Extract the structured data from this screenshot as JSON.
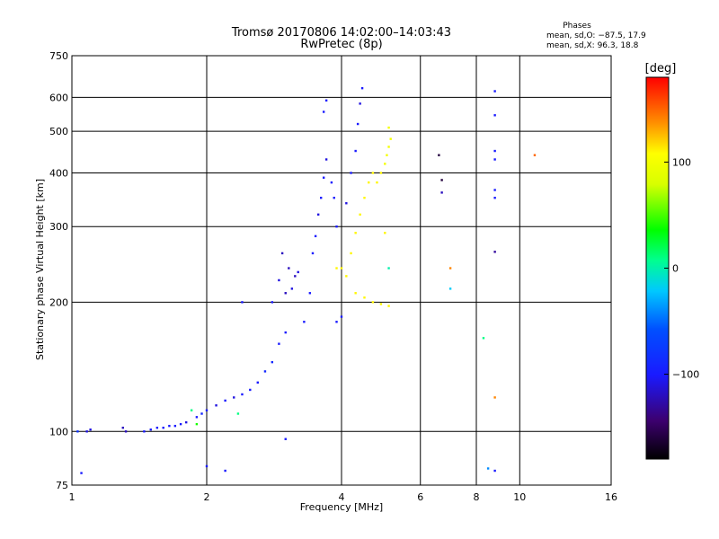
{
  "chart_data": {
    "type": "scatter",
    "title": "Tromsø 20170806 14:02:00–14:03:43",
    "subtitle": "RwPretec (8p)",
    "xlabel": "Frequency [MHz]",
    "ylabel": "Stationary phase Virtual Height [km]",
    "x_scale": "log",
    "y_scale": "log",
    "xlim": [
      1,
      16
    ],
    "ylim": [
      75,
      750
    ],
    "x_ticks": [
      1,
      2,
      4,
      6,
      8,
      10,
      16
    ],
    "x_tick_labels": [
      "1",
      "2",
      "4",
      "6",
      "8",
      "10",
      "16"
    ],
    "y_ticks": [
      75,
      100,
      200,
      300,
      400,
      500,
      600,
      750
    ],
    "y_tick_labels": [
      "75",
      "100",
      "200",
      "300",
      "400",
      "500",
      "600",
      "750"
    ],
    "grid": true,
    "stats": {
      "heading": "Phases",
      "line1": "mean, sd,O: −87.5, 17.9",
      "line2": "mean, sd,X:  96.3, 18.8"
    },
    "colorbar": {
      "label": "[deg]",
      "range": [
        -180,
        180
      ],
      "ticks": [
        100,
        0,
        -100
      ],
      "tick_labels": [
        "100",
        "0",
        "−100"
      ],
      "colormap": "rainbow"
    },
    "series": [
      {
        "points": [
          [
            1.03,
            100,
            -80
          ],
          [
            1.08,
            100,
            -110
          ],
          [
            1.1,
            101,
            -110
          ],
          [
            1.3,
            102,
            -120
          ],
          [
            1.32,
            100,
            -120
          ],
          [
            1.45,
            100,
            -100
          ],
          [
            1.5,
            101,
            -100
          ],
          [
            1.55,
            102,
            -100
          ],
          [
            1.6,
            102,
            -100
          ],
          [
            1.65,
            103,
            -100
          ],
          [
            1.7,
            103,
            -100
          ],
          [
            1.75,
            104,
            -100
          ],
          [
            1.8,
            105,
            -110
          ],
          [
            1.9,
            108,
            -100
          ],
          [
            1.95,
            110,
            -90
          ],
          [
            2.0,
            112,
            -100
          ],
          [
            2.1,
            115,
            -110
          ],
          [
            2.2,
            118,
            -100
          ],
          [
            2.3,
            120,
            -110
          ],
          [
            2.4,
            122,
            -100
          ],
          [
            2.5,
            125,
            -100
          ],
          [
            2.6,
            130,
            -100
          ],
          [
            2.7,
            138,
            -90
          ],
          [
            2.8,
            145,
            -90
          ],
          [
            2.9,
            160,
            -100
          ],
          [
            3.0,
            170,
            -100
          ],
          [
            2.8,
            200,
            -100
          ],
          [
            2.9,
            225,
            -110
          ],
          [
            2.95,
            260,
            -120
          ],
          [
            3.0,
            210,
            -120
          ],
          [
            3.05,
            240,
            -120
          ],
          [
            3.1,
            215,
            -110
          ],
          [
            3.15,
            230,
            -120
          ],
          [
            3.2,
            235,
            -110
          ],
          [
            3.3,
            180,
            -100
          ],
          [
            3.4,
            210,
            -100
          ],
          [
            3.45,
            260,
            -100
          ],
          [
            3.5,
            285,
            -100
          ],
          [
            3.55,
            320,
            -110
          ],
          [
            3.6,
            350,
            -100
          ],
          [
            3.65,
            390,
            -100
          ],
          [
            3.7,
            430,
            -110
          ],
          [
            3.8,
            380,
            -100
          ],
          [
            3.85,
            350,
            -100
          ],
          [
            3.9,
            300,
            -100
          ],
          [
            4.0,
            185,
            -100
          ],
          [
            3.9,
            180,
            -100
          ],
          [
            4.1,
            340,
            -110
          ],
          [
            4.2,
            400,
            -100
          ],
          [
            4.3,
            450,
            -100
          ],
          [
            4.35,
            520,
            -100
          ],
          [
            4.4,
            580,
            -110
          ],
          [
            4.45,
            630,
            -100
          ],
          [
            1.9,
            104,
            40
          ],
          [
            2.4,
            200,
            -100
          ],
          [
            1.05,
            80,
            -100
          ],
          [
            2.0,
            83,
            -100
          ],
          [
            2.2,
            81,
            -100
          ],
          [
            3.0,
            96,
            -100
          ],
          [
            3.7,
            590,
            -100
          ],
          [
            3.65,
            555,
            -100
          ],
          [
            8.8,
            620,
            -100
          ],
          [
            8.8,
            545,
            -100
          ],
          [
            8.8,
            450,
            -100
          ],
          [
            8.8,
            430,
            -100
          ],
          [
            8.8,
            365,
            -100
          ],
          [
            8.8,
            350,
            -100
          ],
          [
            8.8,
            262,
            -130
          ],
          [
            6.6,
            440,
            -160
          ],
          [
            6.7,
            385,
            -160
          ],
          [
            6.7,
            360,
            -120
          ],
          [
            7.0,
            215,
            -20
          ],
          [
            8.8,
            81,
            -100
          ],
          [
            8.5,
            82,
            -40
          ]
        ]
      },
      {
        "points": [
          [
            4.0,
            240,
            110
          ],
          [
            4.1,
            230,
            110
          ],
          [
            4.2,
            260,
            110
          ],
          [
            4.3,
            290,
            110
          ],
          [
            4.4,
            320,
            110
          ],
          [
            4.5,
            350,
            110
          ],
          [
            4.6,
            380,
            110
          ],
          [
            4.7,
            400,
            110
          ],
          [
            4.8,
            380,
            110
          ],
          [
            4.9,
            400,
            110
          ],
          [
            5.0,
            420,
            100
          ],
          [
            5.05,
            440,
            100
          ],
          [
            5.1,
            460,
            100
          ],
          [
            5.15,
            480,
            100
          ],
          [
            4.3,
            210,
            110
          ],
          [
            4.5,
            205,
            110
          ],
          [
            4.7,
            200,
            110
          ],
          [
            4.9,
            198,
            110
          ],
          [
            5.1,
            196,
            110
          ],
          [
            3.9,
            240,
            110
          ],
          [
            5.1,
            510,
            100
          ],
          [
            5.0,
            290,
            110
          ],
          [
            5.1,
            240,
            0
          ],
          [
            7.0,
            240,
            140
          ],
          [
            8.8,
            120,
            140
          ],
          [
            10.8,
            440,
            150
          ],
          [
            1.85,
            112,
            10
          ],
          [
            2.35,
            110,
            10
          ],
          [
            8.3,
            165,
            10
          ]
        ]
      }
    ]
  }
}
